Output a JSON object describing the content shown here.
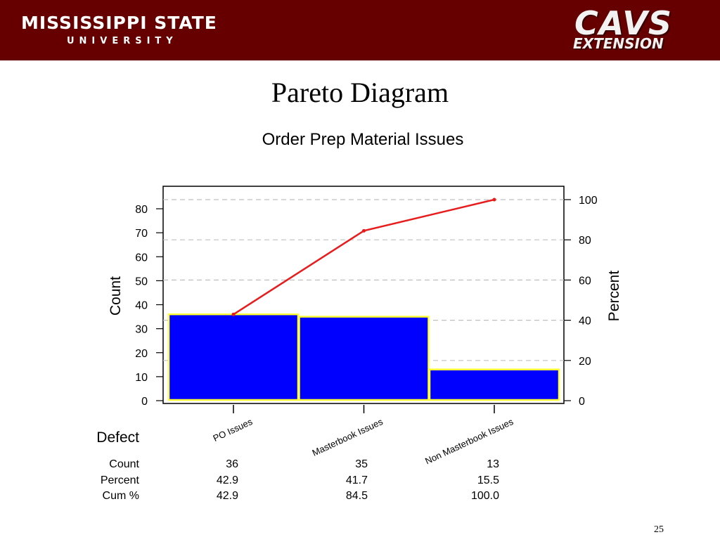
{
  "header": {
    "university_name": "MISSISSIPPI STATE",
    "university_sub": "UNIVERSITY",
    "logo_main": "CAVS",
    "logo_sub": "EXTENSION",
    "banner_color": "#660000"
  },
  "slide": {
    "title": "Pareto Diagram",
    "page_number": "25"
  },
  "chart_data": {
    "type": "bar",
    "subtype": "pareto",
    "title": "Order Prep Material Issues",
    "ylabel": "Count",
    "y2label": "Percent",
    "ylim": [
      0,
      84
    ],
    "y2lim": [
      0,
      100
    ],
    "yticks": [
      0,
      10,
      20,
      30,
      40,
      50,
      60,
      70,
      80
    ],
    "y2ticks": [
      0,
      20,
      40,
      60,
      80,
      100
    ],
    "categories": [
      "PO Issues",
      "Masterbook Issues",
      "Non Masterbook Issues"
    ],
    "values": [
      36,
      35,
      13
    ],
    "percent": [
      "42.9",
      "41.7",
      "15.5"
    ],
    "cum_percent": [
      "42.9",
      "84.5",
      "100.0"
    ],
    "row_labels": {
      "defect": "Defect",
      "count": "Count",
      "percent": "Percent",
      "cum": "Cum %"
    },
    "grid": true,
    "colors": {
      "bar_fill": "#0000ff",
      "bar_border": "#ffff33",
      "line": "#e81c1c",
      "grid": "#c0c0c0"
    }
  }
}
